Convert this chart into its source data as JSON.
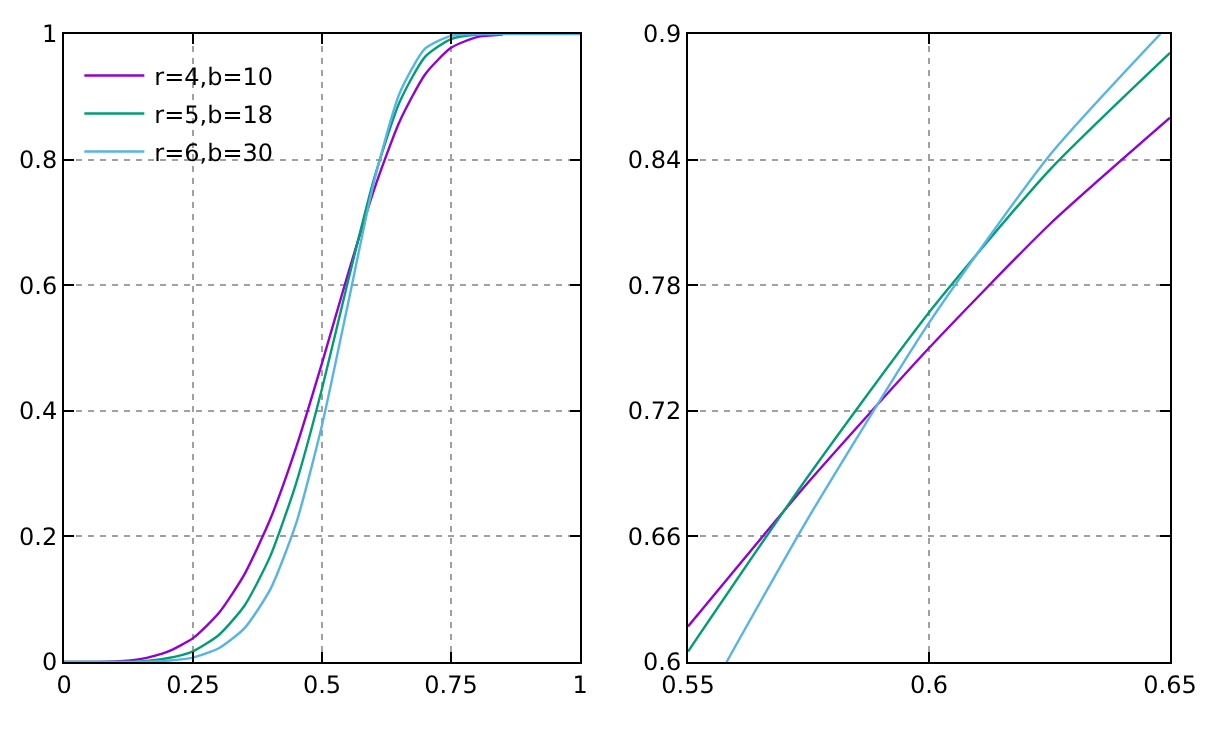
{
  "chart_data": [
    {
      "type": "line",
      "xlim": [
        0,
        1
      ],
      "xticks": [
        0,
        0.25,
        0.5,
        0.75,
        1
      ],
      "ylim": [
        0,
        1
      ],
      "yticks": [
        0,
        0.2,
        0.4,
        0.6,
        0.8,
        1
      ],
      "grid": true,
      "legend": "top left",
      "series": [
        {
          "name": "r=4,b=10",
          "color": "#9400d3",
          "x": [
            0,
            0.1,
            0.15,
            0.2,
            0.25,
            0.3,
            0.35,
            0.4,
            0.45,
            0.5,
            0.55,
            0.6,
            0.65,
            0.7,
            0.75,
            0.8,
            0.85
          ],
          "values": [
            0,
            0.001,
            0.005,
            0.016,
            0.038,
            0.078,
            0.14,
            0.228,
            0.342,
            0.476,
            0.617,
            0.75,
            0.86,
            0.936,
            0.978,
            0.995,
            0.999
          ]
        },
        {
          "name": "r=5,b=18",
          "color": "#009e73",
          "x": [
            0,
            0.1,
            0.15,
            0.2,
            0.25,
            0.3,
            0.35,
            0.4,
            0.45,
            0.5,
            0.55,
            0.6,
            0.65,
            0.7,
            0.75,
            0.8,
            0.85
          ],
          "values": [
            0,
            0,
            0.001,
            0.006,
            0.017,
            0.043,
            0.09,
            0.169,
            0.285,
            0.435,
            0.605,
            0.767,
            0.891,
            0.964,
            0.992,
            0.999,
            1
          ]
        },
        {
          "name": "r=6,b=30",
          "color": "#56b4e9",
          "x": [
            0,
            0.1,
            0.15,
            0.2,
            0.25,
            0.3,
            0.35,
            0.4,
            0.45,
            0.5,
            0.55,
            0.6,
            0.65,
            0.7,
            0.75,
            0.8,
            0.85,
            0.9,
            1
          ],
          "values": [
            0,
            0,
            0,
            0.002,
            0.007,
            0.022,
            0.054,
            0.116,
            0.221,
            0.377,
            0.569,
            0.762,
            0.905,
            0.977,
            0.997,
            1,
            1,
            1,
            1
          ]
        }
      ]
    },
    {
      "type": "line",
      "xlim": [
        0.55,
        0.65
      ],
      "xticks": [
        0.55,
        0.6,
        0.65
      ],
      "ylim": [
        0.6,
        0.9
      ],
      "yticks": [
        0.6,
        0.66,
        0.72,
        0.78,
        0.84,
        0.9
      ],
      "grid": true,
      "series": [
        {
          "color": "#9400d3",
          "x": [
            0.55,
            0.575,
            0.6,
            0.625,
            0.65
          ],
          "values": [
            0.617,
            0.686,
            0.75,
            0.809,
            0.86
          ]
        },
        {
          "color": "#009e73",
          "x": [
            0.55,
            0.575,
            0.6,
            0.625,
            0.65
          ],
          "values": [
            0.605,
            0.689,
            0.767,
            0.835,
            0.891
          ]
        },
        {
          "color": "#56b4e9",
          "x": [
            0.558,
            0.575,
            0.6,
            0.625,
            0.648
          ],
          "values": [
            0.6,
            0.669,
            0.762,
            0.842,
            0.9
          ]
        }
      ]
    }
  ]
}
